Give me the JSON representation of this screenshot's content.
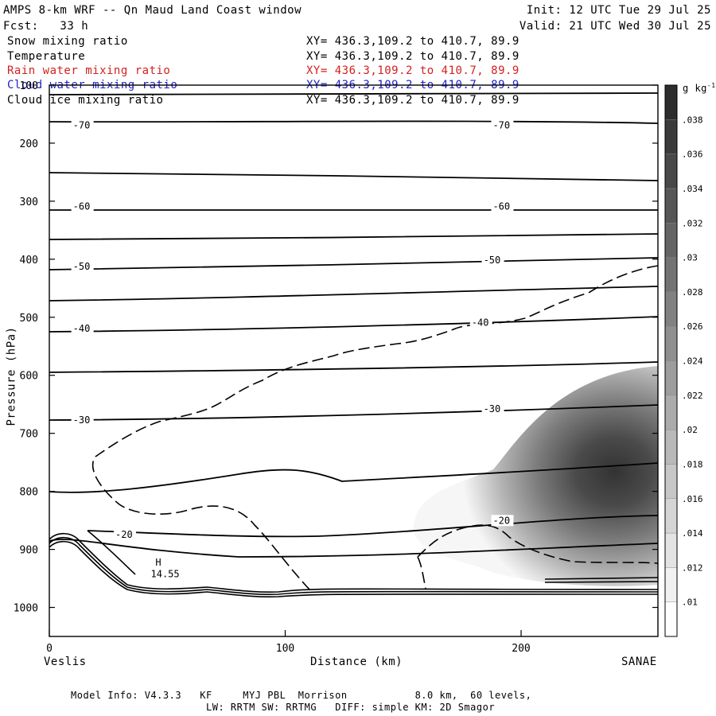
{
  "header": {
    "title": "AMPS 8-km WRF -- Qn Maud Land Coast window",
    "init": "Init: 12 UTC Tue 29 Jul 25",
    "fcst": "Fcst:   33 h",
    "valid": "Valid: 21 UTC Wed 30 Jul 25"
  },
  "fields": [
    {
      "name": "Snow mixing ratio",
      "xy": "XY= 436.3,109.2 to 410.7, 89.9",
      "color": "#000000"
    },
    {
      "name": "Temperature",
      "xy": "XY= 436.3,109.2 to 410.7, 89.9",
      "color": "#000000"
    },
    {
      "name": "Rain water mixing ratio",
      "xy": "XY= 436.3,109.2 to 410.7, 89.9",
      "color": "#d42020"
    },
    {
      "name": "Cloud water mixing ratio",
      "xy": "XY= 436.3,109.2 to 410.7, 89.9",
      "color": "#2020c8"
    },
    {
      "name": "Cloud ice mixing ratio",
      "xy": "XY= 436.3,109.2 to 410.7, 89.9",
      "color": "#000000"
    }
  ],
  "footer": {
    "line1": "Model Info: V4.3.3   KF     MYJ PBL  Morrison           8.0 km,  60 levels,",
    "line2": "LW: RRTM SW: RRTMG   DIFF: simple KM: 2D Smagor"
  },
  "chart_data": {
    "type": "contour",
    "xlabel": "Distance (km)",
    "ylabel": "Pressure (hPa)",
    "xlim": [
      0,
      258
    ],
    "ylim": [
      1050,
      100
    ],
    "x_ticks": [
      0,
      100,
      200
    ],
    "y_ticks": [
      100,
      200,
      300,
      400,
      500,
      600,
      700,
      800,
      900,
      1000
    ],
    "x_endpoints": {
      "left": "Veslis",
      "right": "SANAE"
    },
    "colorbar": {
      "units": "g kg",
      "units_sup": "-1",
      "ticks": [
        ".01",
        ".012",
        ".014",
        ".016",
        ".018",
        ".02",
        ".022",
        ".024",
        ".026",
        ".028",
        ".03",
        ".032",
        ".034",
        ".036",
        ".038"
      ]
    },
    "temperature_labels": [
      {
        "text": "-70",
        "x": 10,
        "p": 172
      },
      {
        "text": "-70",
        "x": 188,
        "p": 172
      },
      {
        "text": "-60",
        "x": 10,
        "p": 312
      },
      {
        "text": "-60",
        "x": 188,
        "p": 312
      },
      {
        "text": "-50",
        "x": 10,
        "p": 415
      },
      {
        "text": "-50",
        "x": 184,
        "p": 404
      },
      {
        "text": "-40",
        "x": 10,
        "p": 522
      },
      {
        "text": "-40",
        "x": 179,
        "p": 512
      },
      {
        "text": "-30",
        "x": 10,
        "p": 680
      },
      {
        "text": "-30",
        "x": 184,
        "p": 661
      },
      {
        "text": "-20",
        "x": 28,
        "p": 877
      },
      {
        "text": "-20",
        "x": 188,
        "p": 853
      }
    ],
    "high_label": {
      "text": "H",
      "x": 45,
      "p": 928
    },
    "high_value": {
      "text": "14.55",
      "x": 43,
      "p": 948
    }
  }
}
